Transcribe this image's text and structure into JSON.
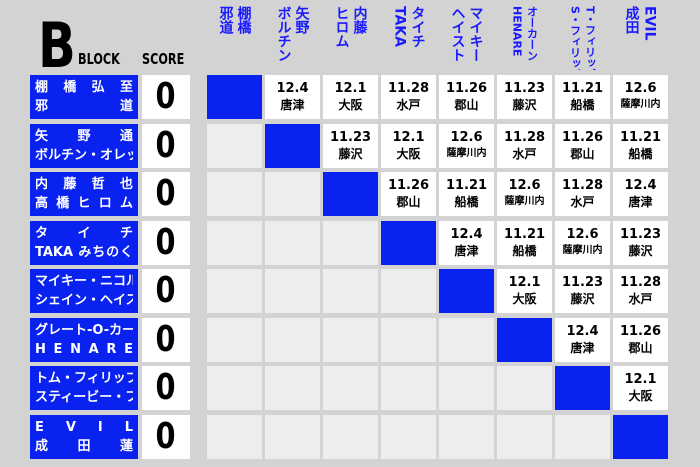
{
  "title": {
    "block_letter": "B",
    "block_word": "BLOCK",
    "score_word": "SCORE"
  },
  "colors": {
    "accent": "#0a22f0",
    "header_text": "#1a1aff"
  },
  "columns": [
    [
      "棚橋",
      "邪道"
    ],
    [
      "矢野",
      "ボルチン"
    ],
    [
      "内藤",
      "ヒロム"
    ],
    [
      "タイチ",
      "TAKA"
    ],
    [
      "マイキー",
      "ヘイスト"
    ],
    [
      "オーカーン",
      "HENARE"
    ],
    [
      "T・フィリップ",
      "S・フィリップ"
    ],
    [
      "EVIL",
      "成田"
    ]
  ],
  "rows": [
    {
      "line1": "棚 橋 弘 至",
      "line2": "邪 道",
      "score": "0"
    },
    {
      "line1": "矢 野 通",
      "line2": "ボルチン・オレッグ",
      "score": "0"
    },
    {
      "line1": "内 藤 哲 也",
      "line2": "高 橋 ヒ ロ ム",
      "score": "0"
    },
    {
      "line1": "タ イ チ",
      "line2": "TAKA みちのく",
      "score": "0"
    },
    {
      "line1": "マイキー・ニコルス",
      "line2": "シェイン・ヘイスト",
      "score": "0"
    },
    {
      "line1": "グレート-O-カーン",
      "line2": "H E N A R E",
      "score": "0"
    },
    {
      "line1": "トム・フィリップ",
      "line2": "スティービー・フィリップ",
      "score": "0"
    },
    {
      "line1": "E V I L",
      "line2": "成 田 蓮",
      "score": "0"
    }
  ],
  "matches": [
    [
      null,
      [
        "12.4",
        "唐津"
      ],
      [
        "12.1",
        "大阪"
      ],
      [
        "11.28",
        "水戸"
      ],
      [
        "11.26",
        "郡山"
      ],
      [
        "11.23",
        "藤沢"
      ],
      [
        "11.21",
        "船橋"
      ],
      [
        "12.6",
        "薩摩川内"
      ]
    ],
    [
      null,
      null,
      [
        "11.23",
        "藤沢"
      ],
      [
        "12.1",
        "大阪"
      ],
      [
        "12.6",
        "薩摩川内"
      ],
      [
        "11.28",
        "水戸"
      ],
      [
        "11.26",
        "郡山"
      ],
      [
        "11.21",
        "船橋"
      ]
    ],
    [
      null,
      null,
      null,
      [
        "11.26",
        "郡山"
      ],
      [
        "11.21",
        "船橋"
      ],
      [
        "12.6",
        "薩摩川内"
      ],
      [
        "11.28",
        "水戸"
      ],
      [
        "12.4",
        "唐津"
      ]
    ],
    [
      null,
      null,
      null,
      null,
      [
        "12.4",
        "唐津"
      ],
      [
        "11.21",
        "船橋"
      ],
      [
        "12.6",
        "薩摩川内"
      ],
      [
        "11.23",
        "藤沢"
      ]
    ],
    [
      null,
      null,
      null,
      null,
      null,
      [
        "12.1",
        "大阪"
      ],
      [
        "11.23",
        "藤沢"
      ],
      [
        "11.28",
        "水戸"
      ]
    ],
    [
      null,
      null,
      null,
      null,
      null,
      null,
      [
        "12.4",
        "唐津"
      ],
      [
        "11.26",
        "郡山"
      ]
    ],
    [
      null,
      null,
      null,
      null,
      null,
      null,
      null,
      [
        "12.1",
        "大阪"
      ]
    ],
    [
      null,
      null,
      null,
      null,
      null,
      null,
      null,
      null
    ]
  ]
}
